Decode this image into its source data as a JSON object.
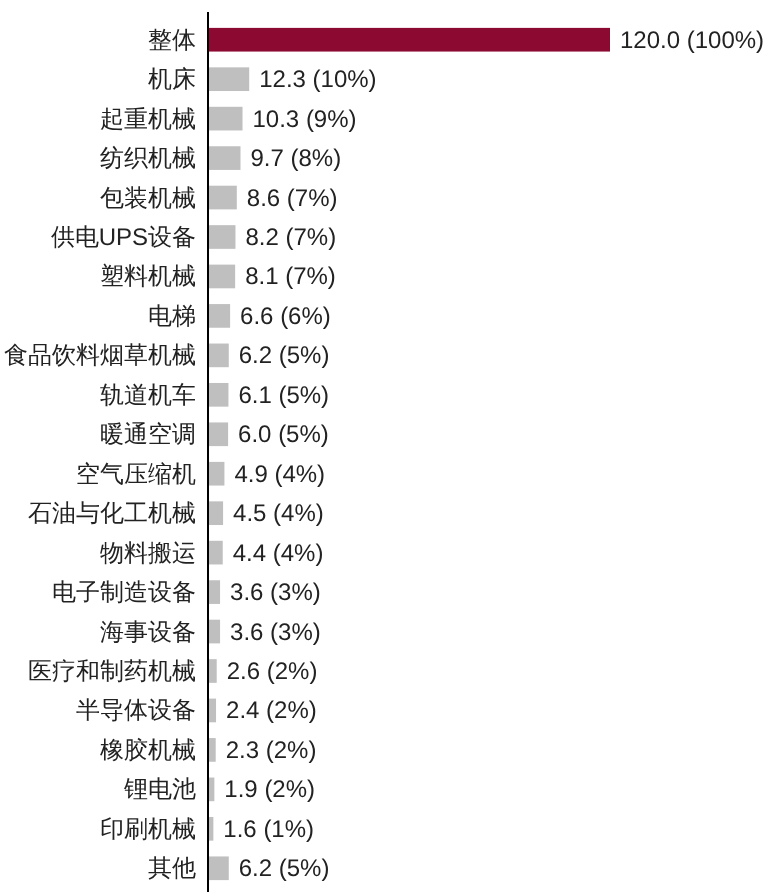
{
  "chart_data": {
    "type": "bar",
    "orientation": "horizontal",
    "categories": [
      "整体",
      "机床",
      "起重机械",
      "纺织机械",
      "包装机械",
      "供电UPS设备",
      "塑料机械",
      "电梯",
      "食品饮料烟草机械",
      "轨道机车",
      "暖通空调",
      "空气压缩机",
      "石油与化工机械",
      "物料搬运",
      "电子制造设备",
      "海事设备",
      "医疗和制药机械",
      "半导体设备",
      "橡胶机械",
      "锂电池",
      "印刷机械",
      "其他"
    ],
    "values": [
      120.0,
      12.3,
      10.3,
      9.7,
      8.6,
      8.2,
      8.1,
      6.6,
      6.2,
      6.1,
      6.0,
      4.9,
      4.5,
      4.4,
      3.6,
      3.6,
      2.6,
      2.4,
      2.3,
      1.9,
      1.6,
      6.2
    ],
    "colors": [
      "#8c0a32",
      "#bfbfbf",
      "#bfbfbf",
      "#bfbfbf",
      "#bfbfbf",
      "#bfbfbf",
      "#bfbfbf",
      "#bfbfbf",
      "#bfbfbf",
      "#bfbfbf",
      "#bfbfbf",
      "#bfbfbf",
      "#bfbfbf",
      "#bfbfbf",
      "#bfbfbf",
      "#bfbfbf",
      "#bfbfbf",
      "#bfbfbf",
      "#bfbfbf",
      "#bfbfbf",
      "#bfbfbf",
      "#bfbfbf"
    ],
    "value_labels": [
      "120.0 (100%)",
      "12.3 (10%)",
      "10.3 (9%)",
      "9.7 (8%)",
      "8.6 (7%)",
      "8.2 (7%)",
      "8.1 (7%)",
      "6.6 (6%)",
      "6.2 (5%)",
      "6.1 (5%)",
      "6.0 (5%)",
      "4.9 (4%)",
      "4.5 (4%)",
      "4.4 (4%)",
      "3.6 (3%)",
      "3.6 (3%)",
      "2.6 (2%)",
      "2.4 (2%)",
      "2.3 (2%)",
      "1.9 (2%)",
      "1.6 (1%)",
      "6.2 (5%)"
    ]
  }
}
